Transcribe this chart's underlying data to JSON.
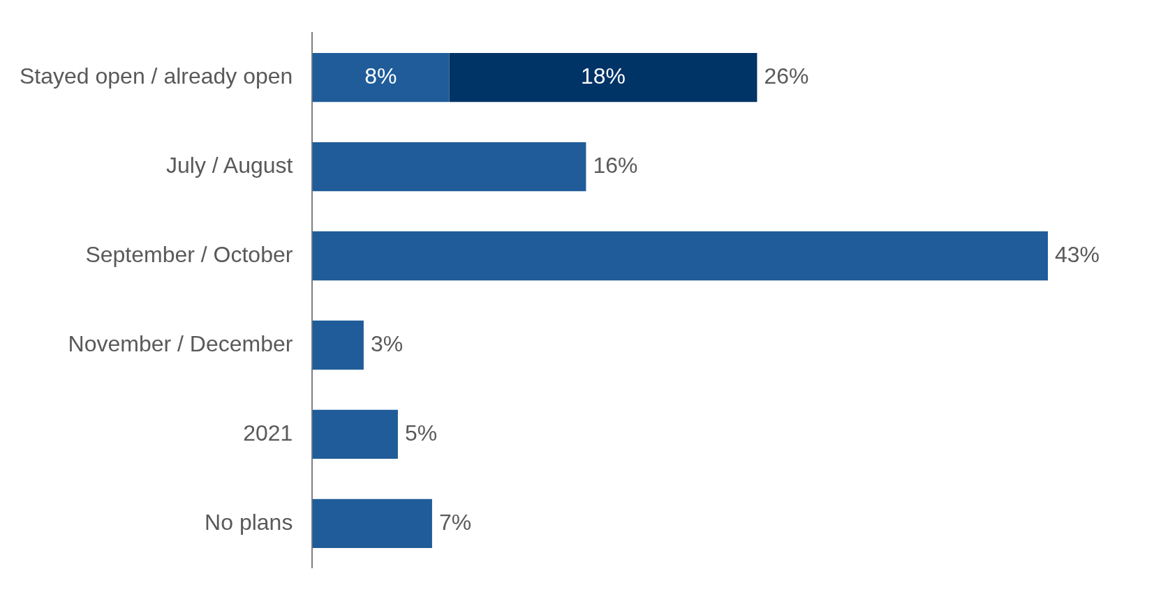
{
  "chart_data": {
    "type": "bar",
    "orientation": "horizontal",
    "stacked": true,
    "legend": false,
    "categories": [
      "Stayed open / already open",
      "July / August",
      "September / October",
      "November / December",
      "2021",
      "No plans"
    ],
    "series": [
      {
        "color": "#1f5c99",
        "values": [
          8,
          16,
          43,
          3,
          5,
          7
        ],
        "value_labels": [
          "8%",
          "16%",
          "43%",
          "3%",
          "5%",
          "7%"
        ]
      },
      {
        "color": "#003366",
        "values": [
          18,
          null,
          null,
          null,
          null,
          null
        ],
        "value_labels": [
          "18%",
          null,
          null,
          null,
          null,
          null
        ]
      }
    ],
    "totals": [
      "26%",
      null,
      null,
      null,
      null,
      null
    ]
  }
}
